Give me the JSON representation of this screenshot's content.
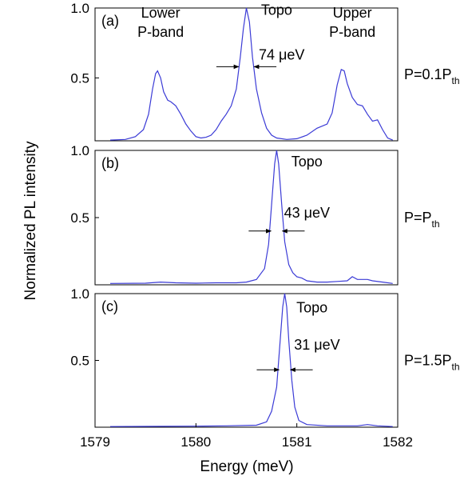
{
  "chart_data": {
    "type": "line",
    "xlabel": "Energy (meV)",
    "ylabel": "Normalized PL intensity",
    "xlim": [
      1579,
      1582
    ],
    "xticks": [
      "1579",
      "1580",
      "1581",
      "1582"
    ],
    "line_color": "#3b3bd6",
    "panels": [
      {
        "label": "(a)",
        "power": {
          "prefix": "P=0.1P",
          "sub": "th"
        },
        "ylim": [
          0.05,
          1.0
        ],
        "yticks": [
          {
            "value": 0.5,
            "label": "0.5"
          },
          {
            "value": 1.0,
            "label": "1.0"
          }
        ],
        "series": [
          {
            "points": [
              [
                1579.15,
                0.055
              ],
              [
                1579.3,
                0.06
              ],
              [
                1579.4,
                0.08
              ],
              [
                1579.48,
                0.13
              ],
              [
                1579.53,
                0.24
              ],
              [
                1579.57,
                0.42
              ],
              [
                1579.6,
                0.53
              ],
              [
                1579.62,
                0.55
              ],
              [
                1579.65,
                0.5
              ],
              [
                1579.68,
                0.4
              ],
              [
                1579.72,
                0.34
              ],
              [
                1579.75,
                0.33
              ],
              [
                1579.8,
                0.3
              ],
              [
                1579.85,
                0.24
              ],
              [
                1579.9,
                0.17
              ],
              [
                1579.95,
                0.12
              ],
              [
                1580.0,
                0.08
              ],
              [
                1580.05,
                0.07
              ],
              [
                1580.1,
                0.075
              ],
              [
                1580.15,
                0.09
              ],
              [
                1580.2,
                0.13
              ],
              [
                1580.25,
                0.19
              ],
              [
                1580.3,
                0.24
              ],
              [
                1580.35,
                0.3
              ],
              [
                1580.4,
                0.42
              ],
              [
                1580.44,
                0.65
              ],
              [
                1580.47,
                0.85
              ],
              [
                1580.5,
                1.0
              ],
              [
                1580.53,
                0.9
              ],
              [
                1580.56,
                0.65
              ],
              [
                1580.6,
                0.42
              ],
              [
                1580.65,
                0.25
              ],
              [
                1580.7,
                0.14
              ],
              [
                1580.75,
                0.09
              ],
              [
                1580.8,
                0.07
              ],
              [
                1580.9,
                0.06
              ],
              [
                1581.0,
                0.065
              ],
              [
                1581.1,
                0.09
              ],
              [
                1581.2,
                0.14
              ],
              [
                1581.3,
                0.17
              ],
              [
                1581.35,
                0.25
              ],
              [
                1581.4,
                0.45
              ],
              [
                1581.44,
                0.56
              ],
              [
                1581.47,
                0.55
              ],
              [
                1581.5,
                0.46
              ],
              [
                1581.55,
                0.36
              ],
              [
                1581.6,
                0.31
              ],
              [
                1581.65,
                0.3
              ],
              [
                1581.7,
                0.24
              ],
              [
                1581.75,
                0.19
              ],
              [
                1581.8,
                0.2
              ],
              [
                1581.85,
                0.13
              ],
              [
                1581.9,
                0.07
              ],
              [
                1581.95,
                0.055
              ]
            ]
          }
        ],
        "annotations": [
          {
            "lines": [
              "Lower",
              "P-band"
            ],
            "x": 1579.65,
            "y": 0.93
          },
          {
            "lines": [
              "Topo"
            ],
            "x": 1580.8,
            "y": 0.95
          },
          {
            "lines": [
              "Upper",
              "P-band"
            ],
            "x": 1581.55,
            "y": 0.93
          },
          {
            "lines": [
              "74 μeV"
            ],
            "x": 1580.85,
            "y": 0.63
          }
        ],
        "fwhm": {
          "y": 0.58,
          "left_x": 1580.44,
          "right_x": 1580.56
        }
      },
      {
        "label": "(b)",
        "power": {
          "prefix": "P=P",
          "sub": "th"
        },
        "ylim": [
          0.0,
          1.0
        ],
        "yticks": [
          {
            "value": 0.5,
            "label": "0.5"
          },
          {
            "value": 1.0,
            "label": "1.0"
          }
        ],
        "series": [
          {
            "points": [
              [
                1579.15,
                0.01
              ],
              [
                1579.5,
                0.012
              ],
              [
                1579.65,
                0.02
              ],
              [
                1579.8,
                0.015
              ],
              [
                1580.0,
                0.012
              ],
              [
                1580.2,
                0.015
              ],
              [
                1580.4,
                0.015
              ],
              [
                1580.5,
                0.02
              ],
              [
                1580.6,
                0.04
              ],
              [
                1580.68,
                0.12
              ],
              [
                1580.72,
                0.3
              ],
              [
                1580.75,
                0.6
              ],
              [
                1580.78,
                0.9
              ],
              [
                1580.8,
                1.0
              ],
              [
                1580.82,
                0.9
              ],
              [
                1580.85,
                0.6
              ],
              [
                1580.88,
                0.32
              ],
              [
                1580.92,
                0.15
              ],
              [
                1580.96,
                0.09
              ],
              [
                1581.0,
                0.06
              ],
              [
                1581.05,
                0.05
              ],
              [
                1581.1,
                0.03
              ],
              [
                1581.2,
                0.02
              ],
              [
                1581.3,
                0.02
              ],
              [
                1581.4,
                0.025
              ],
              [
                1581.5,
                0.03
              ],
              [
                1581.55,
                0.06
              ],
              [
                1581.6,
                0.04
              ],
              [
                1581.7,
                0.04
              ],
              [
                1581.75,
                0.03
              ],
              [
                1581.85,
                0.02
              ],
              [
                1581.95,
                0.01
              ]
            ]
          }
        ],
        "annotations": [
          {
            "lines": [
              "Topo"
            ],
            "x": 1581.1,
            "y": 0.88
          },
          {
            "lines": [
              "43 μeV"
            ],
            "x": 1581.1,
            "y": 0.5
          }
        ],
        "fwhm": {
          "y": 0.4,
          "left_x": 1580.76,
          "right_x": 1580.84
        }
      },
      {
        "label": "(c)",
        "power": {
          "prefix": "P=1.5P",
          "sub": "th"
        },
        "ylim": [
          0.0,
          1.0
        ],
        "yticks": [
          {
            "value": 0.5,
            "label": "0.5"
          },
          {
            "value": 1.0,
            "label": "1.0"
          }
        ],
        "series": [
          {
            "points": [
              [
                1579.15,
                0.005
              ],
              [
                1579.5,
                0.006
              ],
              [
                1580.0,
                0.008
              ],
              [
                1580.3,
                0.01
              ],
              [
                1580.6,
                0.015
              ],
              [
                1580.7,
                0.04
              ],
              [
                1580.75,
                0.12
              ],
              [
                1580.8,
                0.3
              ],
              [
                1580.83,
                0.6
              ],
              [
                1580.86,
                0.9
              ],
              [
                1580.88,
                1.0
              ],
              [
                1580.9,
                0.9
              ],
              [
                1580.92,
                0.65
              ],
              [
                1580.95,
                0.35
              ],
              [
                1580.98,
                0.15
              ],
              [
                1581.02,
                0.05
              ],
              [
                1581.1,
                0.02
              ],
              [
                1581.3,
                0.01
              ],
              [
                1581.6,
                0.01
              ],
              [
                1581.7,
                0.02
              ],
              [
                1581.8,
                0.01
              ],
              [
                1581.95,
                0.005
              ]
            ]
          }
        ],
        "annotations": [
          {
            "lines": [
              "Topo"
            ],
            "x": 1581.15,
            "y": 0.86
          },
          {
            "lines": [
              "31 μeV"
            ],
            "x": 1581.2,
            "y": 0.58
          }
        ],
        "fwhm": {
          "y": 0.43,
          "left_x": 1580.84,
          "right_x": 1580.92
        }
      }
    ]
  }
}
